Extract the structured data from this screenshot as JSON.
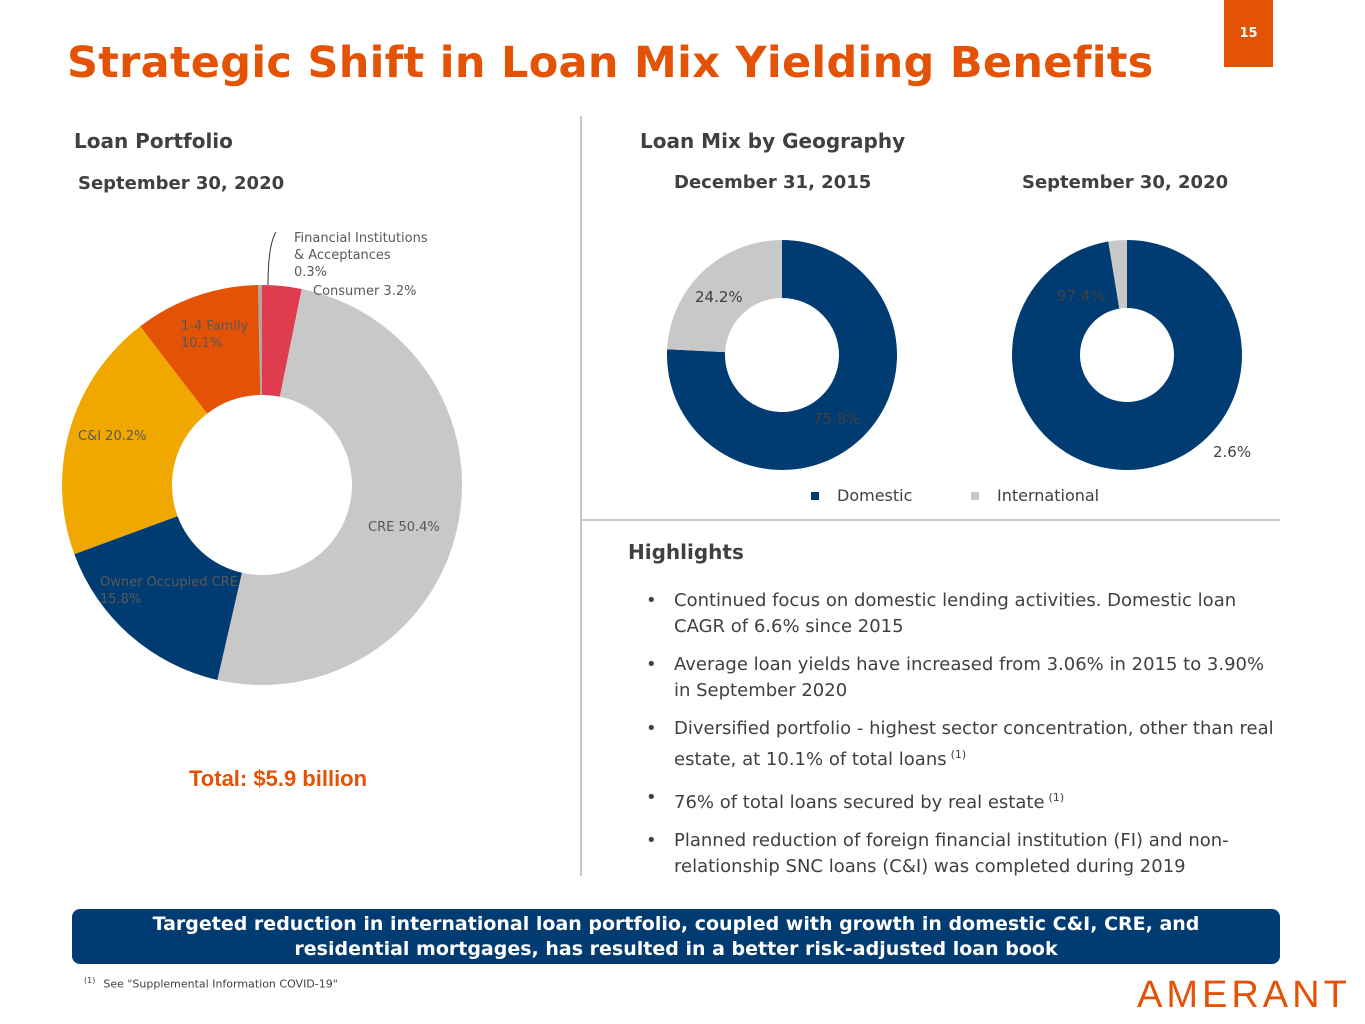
{
  "page_number": "15",
  "title": "Strategic Shift in Loan Mix Yielding Benefits",
  "left_section": {
    "heading": "Loan Portfolio",
    "date": "September 30, 2020",
    "total": "Total: $5.9 billion"
  },
  "right_section": {
    "heading": "Loan Mix by Geography",
    "date_left": "December 31, 2015",
    "date_right": "September 30, 2020",
    "legend": [
      {
        "label": "Domestic",
        "color": "#003b72"
      },
      {
        "label": "International",
        "color": "#c8c8c8"
      }
    ]
  },
  "highlights": {
    "heading": "Highlights",
    "items": [
      {
        "text": "Continued focus on domestic lending activities. Domestic loan CAGR of 6.6% since 2015",
        "note": ""
      },
      {
        "text": "Average loan yields have increased from 3.06% in 2015 to 3.90% in September 2020",
        "note": ""
      },
      {
        "text": "Diversified portfolio - highest sector concentration, other than real estate, at 10.1% of total loans",
        "note": "(1)"
      },
      {
        "text": "76% of total loans secured by real estate",
        "note": "(1)"
      },
      {
        "text": "Planned reduction of foreign financial institution (FI) and non-relationship SNC loans (C&I) was completed during 2019",
        "note": ""
      }
    ]
  },
  "banner": "Targeted reduction in international loan portfolio, coupled with growth in domestic C&I, CRE, and residential mortgages, has resulted in a better risk-adjusted loan book",
  "footnote": {
    "mark": "(1)",
    "text": "See \"Supplemental Information COVID-19\""
  },
  "logo": "AMERANT",
  "chart_data": [
    {
      "type": "pie",
      "subtype": "donut",
      "title": "Loan Portfolio",
      "subtitle": "September 30, 2020",
      "slices": [
        {
          "label_lines": [
            "Financial Institutions",
            "& Acceptances",
            "0.3%"
          ],
          "value": 0.3,
          "color": "#a9a9a9"
        },
        {
          "label_lines": [
            "Consumer 3.2%"
          ],
          "value": 3.2,
          "color": "#e03c50"
        },
        {
          "label_lines": [
            "CRE 50.4%"
          ],
          "value": 50.4,
          "color": "#c8c8c8"
        },
        {
          "label_lines": [
            "Owner Occupied CRE",
            "15.8%"
          ],
          "value": 15.8,
          "color": "#003b72"
        },
        {
          "label_lines": [
            "C&I 20.2%"
          ],
          "value": 20.2,
          "color": "#f0a800"
        },
        {
          "label_lines": [
            "1-4 Family",
            "10.1%"
          ],
          "value": 10.1,
          "color": "#e35205"
        }
      ]
    },
    {
      "type": "pie",
      "subtype": "donut",
      "title": "Loan Mix by Geography",
      "subtitle": "December 31, 2015",
      "slices": [
        {
          "label": "75.8%",
          "series": "Domestic",
          "value": 75.8,
          "color": "#003b72"
        },
        {
          "label": "24.2%",
          "series": "International",
          "value": 24.2,
          "color": "#c8c8c8"
        }
      ]
    },
    {
      "type": "pie",
      "subtype": "donut",
      "title": "Loan Mix by Geography",
      "subtitle": "September 30, 2020",
      "slices": [
        {
          "label": "97.4%",
          "series": "Domestic",
          "value": 97.4,
          "color": "#003b72"
        },
        {
          "label": "2.6%",
          "series": "International",
          "value": 2.6,
          "color": "#c8c8c8"
        }
      ]
    }
  ]
}
